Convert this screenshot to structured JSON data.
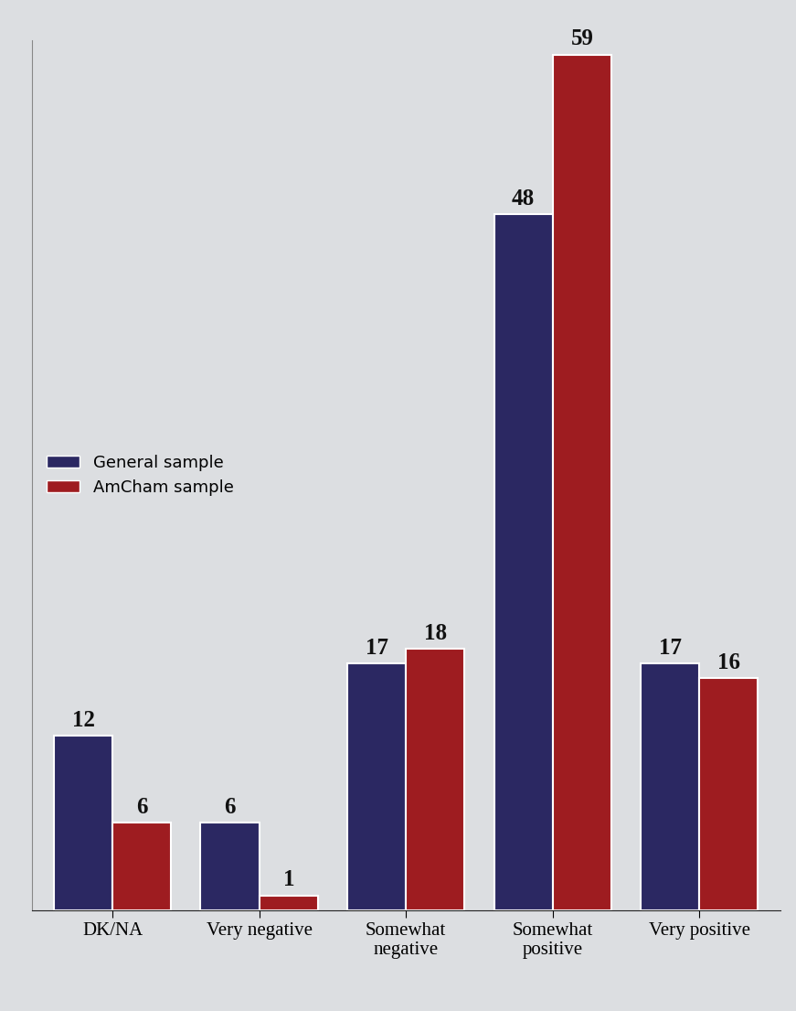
{
  "chart_data": {
    "type": "bar",
    "categories": [
      "DK/NA",
      "Very negative",
      "Somewhat negative",
      "Somewhat positive",
      "Very positive"
    ],
    "series": [
      {
        "name": "General sample",
        "color": "#2b2862",
        "values": [
          12,
          6,
          17,
          48,
          17
        ]
      },
      {
        "name": "AmCham sample",
        "color": "#9e1c20",
        "values": [
          6,
          1,
          18,
          59,
          16
        ]
      }
    ],
    "ylim": [
      0,
      60
    ],
    "yticks": [],
    "tick_labels": "x",
    "data_labels": true,
    "legend": "center left",
    "grid": false
  }
}
